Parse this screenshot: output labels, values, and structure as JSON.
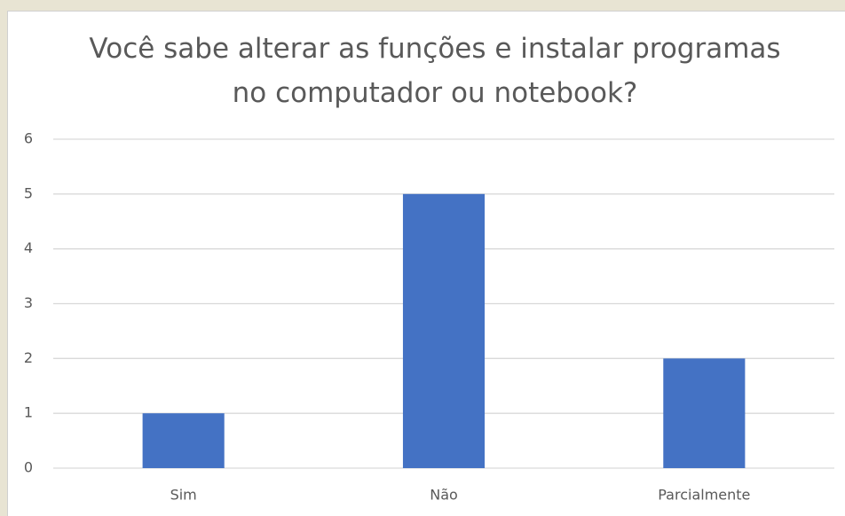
{
  "chart_data": {
    "type": "bar",
    "title": "Você sabe alterar as funções e instalar programas no computador ou notebook?",
    "categories": [
      "Sim",
      "Não",
      "Parcialmente"
    ],
    "values": [
      1,
      5,
      2
    ],
    "color": "#4472c4",
    "ylim": [
      0,
      6
    ],
    "yticks": [
      0,
      1,
      2,
      3,
      4,
      5,
      6
    ],
    "grid": true
  }
}
